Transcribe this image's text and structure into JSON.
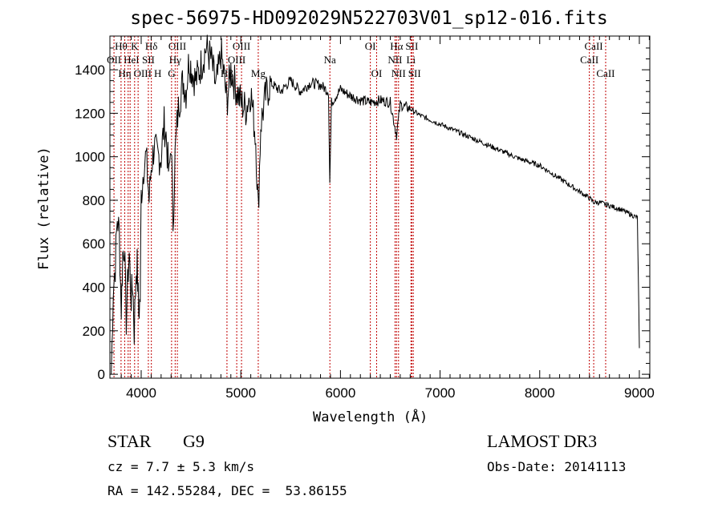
{
  "chart_data": {
    "type": "line",
    "title": "spec-56975-HD092029N522703V01_sp12-016.fits",
    "xlabel": "Wavelength (Å)",
    "ylabel": "Flux (relative)",
    "xlim": [
      3686,
      9105
    ],
    "ylim": [
      -18,
      1555
    ],
    "xticks": [
      4000,
      5000,
      6000,
      7000,
      8000,
      9000
    ],
    "yticks": [
      0,
      200,
      400,
      600,
      800,
      1000,
      1200,
      1400
    ],
    "grid": false,
    "series": [
      {
        "name": "flux",
        "x": [
          3700,
          3720,
          3740,
          3760,
          3780,
          3800,
          3815,
          3830,
          3850,
          3870,
          3880,
          3900,
          3915,
          3930,
          3950,
          3960,
          3975,
          3990,
          4000,
          4030,
          4050,
          4080,
          4100,
          4130,
          4160,
          4200,
          4230,
          4250,
          4280,
          4300,
          4320,
          4340,
          4360,
          4380,
          4420,
          4450,
          4480,
          4520,
          4550,
          4600,
          4650,
          4700,
          4750,
          4780,
          4800,
          4830,
          4860,
          4900,
          4950,
          5000,
          5050,
          5100,
          5150,
          5175,
          5200,
          5250,
          5300,
          5400,
          5500,
          5600,
          5700,
          5800,
          5880,
          5893,
          5910,
          6000,
          6100,
          6200,
          6300,
          6400,
          6500,
          6563,
          6600,
          6700,
          6800,
          7000,
          7200,
          7500,
          7800,
          8000,
          8200,
          8400,
          8500,
          8542,
          8600,
          8800,
          8980,
          8995,
          9000
        ],
        "y": [
          0,
          400,
          500,
          720,
          650,
          300,
          550,
          600,
          250,
          480,
          550,
          350,
          420,
          200,
          480,
          500,
          280,
          350,
          820,
          980,
          1000,
          800,
          950,
          1050,
          1000,
          1000,
          1150,
          1100,
          900,
          1080,
          700,
          1000,
          1150,
          1250,
          1350,
          1300,
          1450,
          1380,
          1350,
          1420,
          1500,
          1450,
          1320,
          1400,
          1480,
          1380,
          1250,
          1400,
          1320,
          1250,
          1220,
          1300,
          1080,
          750,
          1150,
          1280,
          1340,
          1300,
          1350,
          1300,
          1340,
          1330,
          1300,
          880,
          1250,
          1310,
          1280,
          1260,
          1250,
          1260,
          1250,
          1100,
          1240,
          1220,
          1190,
          1150,
          1110,
          1050,
          990,
          960,
          900,
          840,
          810,
          790,
          790,
          760,
          720,
          300,
          120
        ]
      }
    ],
    "lines": [
      {
        "label": "Hθ",
        "wl": 3798,
        "row": 0
      },
      {
        "label": "K",
        "wl": 3934,
        "row": 0
      },
      {
        "label": "Hδ",
        "wl": 4102,
        "row": 0
      },
      {
        "label": "OII",
        "wl": 3727,
        "row": 1
      },
      {
        "label": "HeI",
        "wl": 3889,
        "row": 1
      },
      {
        "label": "SII",
        "wl": 4072,
        "row": 1
      },
      {
        "label": "OIII",
        "wl": 3869,
        "row": 2
      },
      {
        "label": "Hη",
        "wl": 3835,
        "row": 2
      },
      {
        "label": "H",
        "wl": 3969,
        "row": 2
      },
      {
        "label": "OIII",
        "wl": 4363,
        "row": 0
      },
      {
        "label": "Hγ",
        "wl": 4341,
        "row": 1
      },
      {
        "label": "G",
        "wl": 4305,
        "row": 2
      },
      {
        "label": "OIII",
        "wl": 5007,
        "row": 0
      },
      {
        "label": "OIII",
        "wl": 4959,
        "row": 1
      },
      {
        "label": "Hβ",
        "wl": 4861,
        "row": 2
      },
      {
        "label": "Mg",
        "wl": 5175,
        "row": 2
      },
      {
        "label": "Na",
        "wl": 5894,
        "row": 1
      },
      {
        "label": "OI",
        "wl": 6300,
        "row": 0
      },
      {
        "label": "OI",
        "wl": 6363,
        "row": 2
      },
      {
        "label": "Hα",
        "wl": 6563,
        "row": 0
      },
      {
        "label": "SII",
        "wl": 6716,
        "row": 0
      },
      {
        "label": "NII",
        "wl": 6548,
        "row": 1
      },
      {
        "label": "Li",
        "wl": 6708,
        "row": 1
      },
      {
        "label": "NII",
        "wl": 6583,
        "row": 2
      },
      {
        "label": "SII",
        "wl": 6731,
        "row": 2
      },
      {
        "label": "CaII",
        "wl": 8542,
        "row": 0
      },
      {
        "label": "CaII",
        "wl": 8498,
        "row": 1
      },
      {
        "label": "CaII",
        "wl": 8662,
        "row": 2
      }
    ]
  },
  "info": {
    "class": "STAR",
    "subclass": "G9",
    "cz": "cz = 7.7 ± 5.3 km/s",
    "radec": "RA = 142.55284, DEC =  53.86155",
    "survey": "LAMOST DR3",
    "obsdate": "Obs-Date: 20141113"
  }
}
